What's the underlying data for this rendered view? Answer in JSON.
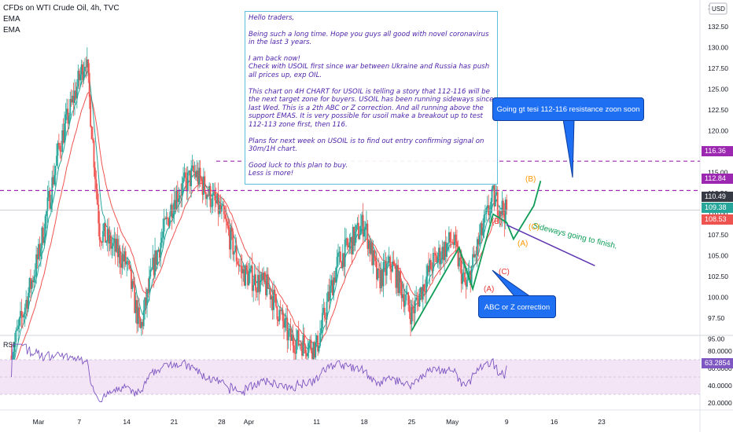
{
  "header": {
    "symbol_line": "CFDs on WTI Crude Oil, 4h, TVC",
    "indicator_1": "EMA",
    "indicator_2": "EMA"
  },
  "currency": "USD",
  "note": {
    "paragraphs": [
      "Hello traders,",
      "Being such a long time. Hope you guys all good with novel coronavirus in the last 3 years.",
      "I am back now!\nCheck with USOIL first since war between Ukraine and Russia has push all prices up, exp OIL.",
      "This chart on 4H CHART for USOIL is telling a story that 112-116 will be the next target zone for buyers. USOIL has been running sideways since last Wed. This is a 2th  ABC or Z correction. And all running above the support EMAS. It is very possible for usoil make a breakout up to test 112-113 zone first, then 116.",
      "Plans for next week on USOIL is to find out entry confirming signal on 30m/1H chart.",
      "Good luck to this plan to buy.\nLess is more!"
    ]
  },
  "callouts": {
    "resistance": "Going gt tesi 112-116 resistance zoon soon",
    "correction": "ABC or Z correction"
  },
  "annotations": {
    "sideways": "Sideways going to finish.",
    "wave_labels": [
      "(A)",
      "(B)",
      "(C)",
      "(A)",
      "(B)",
      "(C)"
    ]
  },
  "price_axis": {
    "ticks": [
      "132.50",
      "130.00",
      "127.50",
      "125.00",
      "122.50",
      "120.00",
      "117.50",
      "115.00",
      "112.50",
      "110.00",
      "107.50",
      "105.00",
      "102.50",
      "100.00",
      "97.50",
      "95.00"
    ],
    "top_tick_partial": "1"
  },
  "price_labels": {
    "resistance_high": "116.36",
    "resistance_low": "112.84",
    "last": "110.49",
    "ema_fast": "109.38",
    "ema_slow": "108.53"
  },
  "rsi": {
    "label": "RSI",
    "ticks": [
      "80.0000",
      "60.0000",
      "40.0000",
      "20.0000"
    ],
    "value": "63.2854"
  },
  "time_axis": {
    "labels": [
      "Mar",
      "7",
      "14",
      "21",
      "28",
      "Apr",
      "11",
      "18",
      "25",
      "May",
      "9",
      "16",
      "23"
    ]
  },
  "colors": {
    "up": "#26a69a",
    "down": "#ef5350",
    "ema_fast": "#26a69a",
    "ema_slow": "#ef5350",
    "resistance_line": "#9c27b0",
    "rsi_line": "#7e57c2",
    "rsi_band": "#f3e5f5",
    "callout": "#1e6ff2",
    "wave_green": "#0f9d58",
    "wave_red": "#e53935",
    "wave_orange": "#ff9800",
    "sideways_line": "#5e35b1"
  },
  "chart_data": [
    {
      "type": "candlestick",
      "title": "CFDs on WTI Crude Oil, 4h, TVC",
      "x_range": [
        "2022-02-28",
        "2022-05-26"
      ],
      "ylim": [
        92.5,
        135
      ],
      "resistance_levels": [
        116.36,
        112.84
      ],
      "last_price": 110.49,
      "ema_values": [
        109.38,
        108.53
      ],
      "anchors": [
        {
          "date": "2022-02-25",
          "value": 93
        },
        {
          "date": "2022-03-01",
          "value": 105
        },
        {
          "date": "2022-03-04",
          "value": 118
        },
        {
          "date": "2022-03-08",
          "value": 129
        },
        {
          "date": "2022-03-10",
          "value": 108
        },
        {
          "date": "2022-03-14",
          "value": 104
        },
        {
          "date": "2022-03-16",
          "value": 96
        },
        {
          "date": "2022-03-18",
          "value": 104
        },
        {
          "date": "2022-03-21",
          "value": 112
        },
        {
          "date": "2022-03-24",
          "value": 115
        },
        {
          "date": "2022-03-28",
          "value": 110
        },
        {
          "date": "2022-03-31",
          "value": 103
        },
        {
          "date": "2022-04-04",
          "value": 101
        },
        {
          "date": "2022-04-07",
          "value": 95
        },
        {
          "date": "2022-04-11",
          "value": 94
        },
        {
          "date": "2022-04-14",
          "value": 104
        },
        {
          "date": "2022-04-18",
          "value": 109
        },
        {
          "date": "2022-04-20",
          "value": 102
        },
        {
          "date": "2022-04-22",
          "value": 104
        },
        {
          "date": "2022-04-25",
          "value": 98
        },
        {
          "date": "2022-04-28",
          "value": 104
        },
        {
          "date": "2022-05-01",
          "value": 107
        },
        {
          "date": "2022-05-03",
          "value": 101
        },
        {
          "date": "2022-05-05",
          "value": 107
        },
        {
          "date": "2022-05-07",
          "value": 112
        },
        {
          "date": "2022-05-09",
          "value": 110
        }
      ]
    },
    {
      "type": "line",
      "title": "RSI",
      "ylim": [
        15,
        90
      ],
      "band": [
        30,
        70
      ],
      "last_value": 63.2854
    }
  ]
}
